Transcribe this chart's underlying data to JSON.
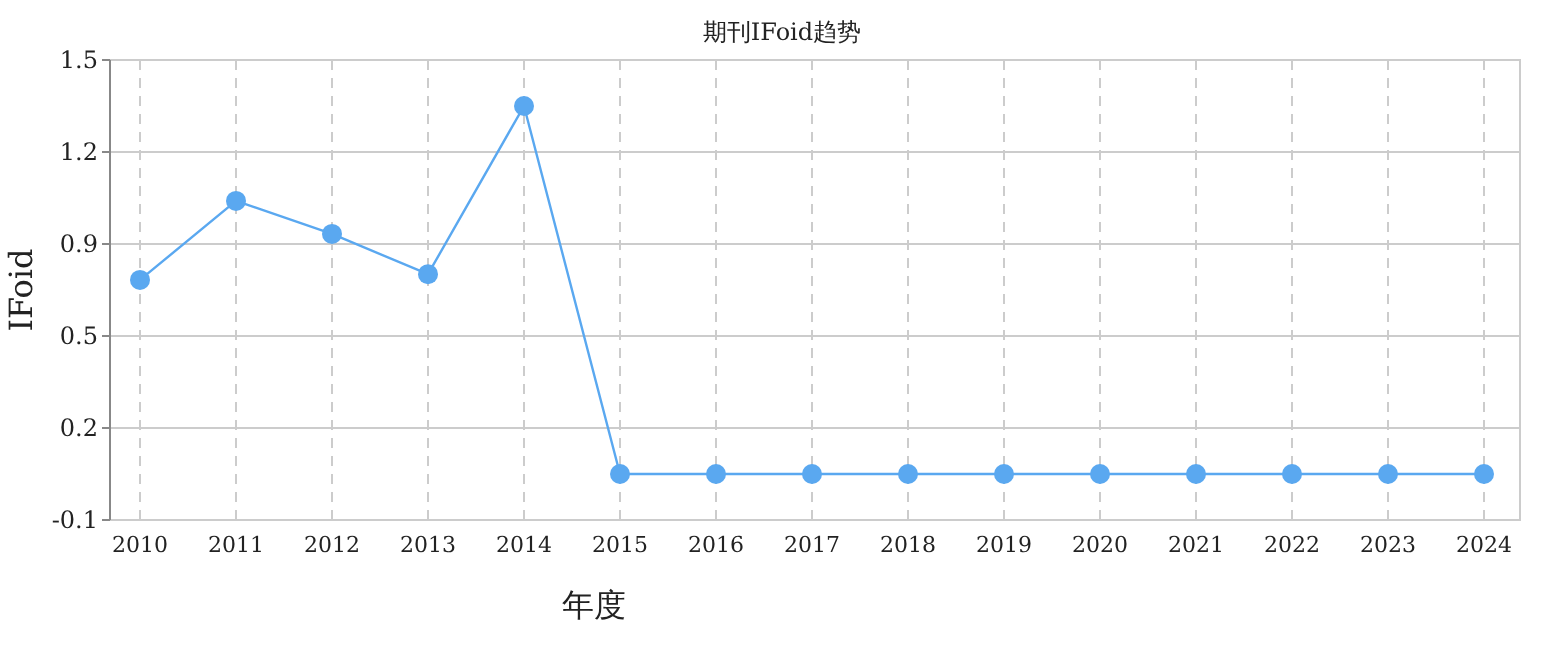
{
  "chart_data": {
    "type": "line",
    "title": "期刊IFoid趋势",
    "xlabel": "年度",
    "ylabel": "IFoid",
    "categories": [
      "2010",
      "2011",
      "2012",
      "2013",
      "2014",
      "2015",
      "2016",
      "2017",
      "2018",
      "2019",
      "2020",
      "2021",
      "2022",
      "2023",
      "2024"
    ],
    "series": [
      {
        "color": "#5aa8f0",
        "values": [
          0.735,
          1.01,
          0.895,
          0.755,
          1.34,
          0.06,
          0.06,
          0.06,
          0.06,
          0.06,
          0.06,
          0.06,
          0.06,
          0.06,
          0.06
        ]
      }
    ],
    "ylim": [
      -0.1,
      1.5
    ],
    "yticks": [
      -0.1,
      {
        "value": 0.22,
        "label": "0.2"
      },
      {
        "value": 0.54,
        "label": "0.5"
      },
      {
        "value": 0.86,
        "label": "0.9"
      },
      {
        "value": 1.18,
        "label": "1.2"
      },
      1.5
    ],
    "grid": true,
    "marker": "circle",
    "line_style": "solid"
  }
}
